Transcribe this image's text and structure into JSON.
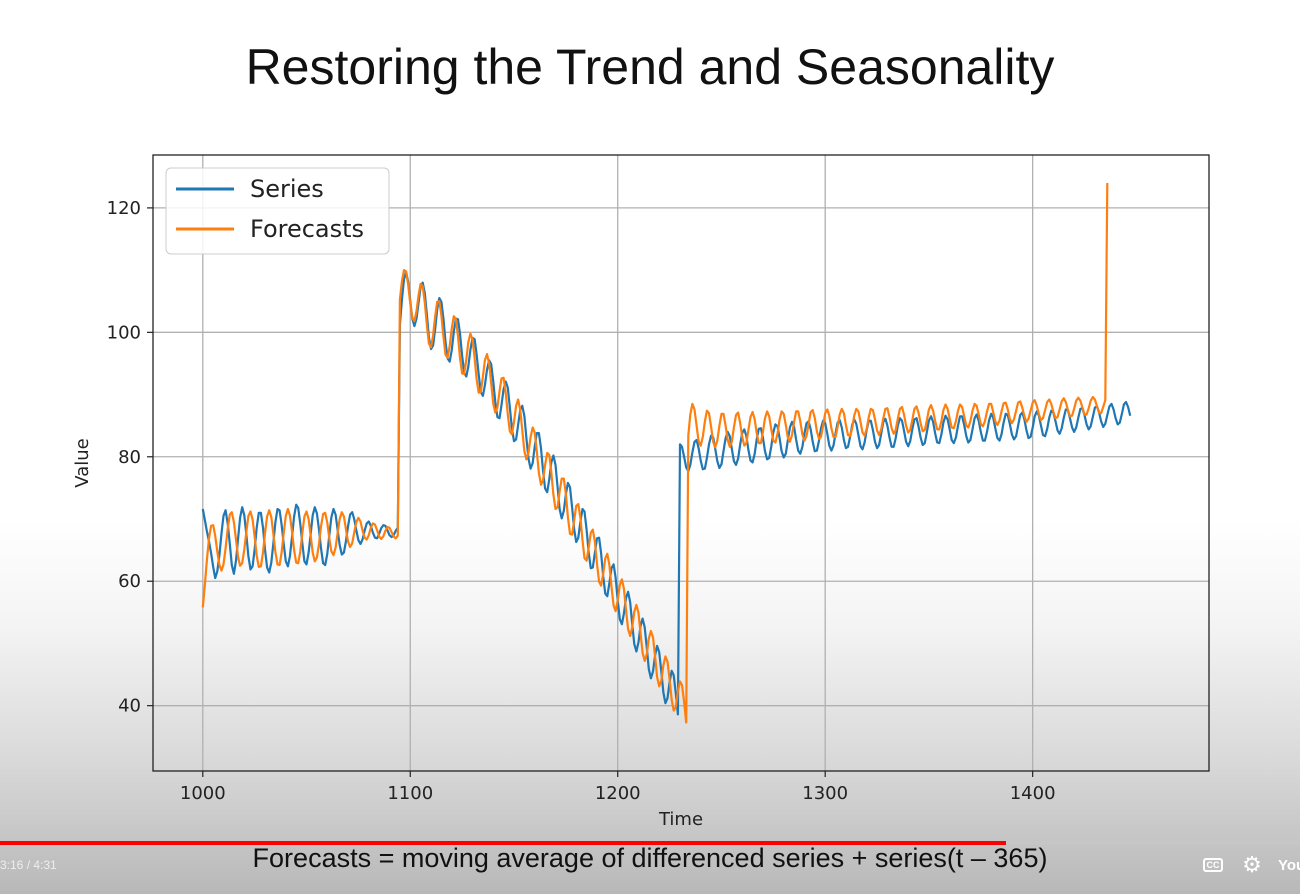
{
  "slide": {
    "title": "Restoring the Trend and Seasonality",
    "caption": "Forecasts = moving average of differenced series + series(t – 365)"
  },
  "player": {
    "timecode": "3:16 / 4:31",
    "progress_fraction": 0.774,
    "cc_label": "CC",
    "settings_icon": "gear-icon",
    "logo_text": "YouTube"
  },
  "chart_data": {
    "type": "line",
    "title": "",
    "xlabel": "Time",
    "ylabel": "Value",
    "xlim": [
      976,
      1485
    ],
    "ylim": [
      29.5,
      128.5
    ],
    "xticks": [
      1000,
      1100,
      1200,
      1300,
      1400
    ],
    "yticks": [
      40,
      60,
      80,
      100,
      120
    ],
    "grid": true,
    "legend": "top-left",
    "series": [
      {
        "name": "Series",
        "color": "#1f77b4",
        "x_start": 1000,
        "x_step": 1,
        "values": [
          71.6,
          69.8,
          68.0,
          66.4,
          64.5,
          62.3,
          60.5,
          61.6,
          64.2,
          67.7,
          70.5,
          71.4,
          69.3,
          66.0,
          62.6,
          61.2,
          63.3,
          66.9,
          70.2,
          71.9,
          70.6,
          67.4,
          64.0,
          61.9,
          62.4,
          65.2,
          68.6,
          71.0,
          71.0,
          68.6,
          65.1,
          62.2,
          61.4,
          63.0,
          66.0,
          69.5,
          71.6,
          71.4,
          69.1,
          66.0,
          63.2,
          62.4,
          64.0,
          67.1,
          70.4,
          72.3,
          71.8,
          69.2,
          66.0,
          63.2,
          62.7,
          64.6,
          67.6,
          70.6,
          71.9,
          70.9,
          68.3,
          65.3,
          62.9,
          62.6,
          64.4,
          67.4,
          70.3,
          71.6,
          70.7,
          68.3,
          65.8,
          64.3,
          64.6,
          66.4,
          68.8,
          70.7,
          71.1,
          70.0,
          68.2,
          66.6,
          66.0,
          66.7,
          68.1,
          69.3,
          69.6,
          68.9,
          67.8,
          67.0,
          66.9,
          67.6,
          68.5,
          69.0,
          68.9,
          68.2,
          67.4,
          67.1,
          67.4,
          68.1,
          68.6,
          101.2,
          105.4,
          108.5,
          109.7,
          108.1,
          105.0,
          102.2,
          101.0,
          102.2,
          104.8,
          107.3,
          108.0,
          106.3,
          102.8,
          99.2,
          97.3,
          97.9,
          100.6,
          103.7,
          105.5,
          104.9,
          102.1,
          98.5,
          95.8,
          95.3,
          97.2,
          100.1,
          102.2,
          102.1,
          99.8,
          96.3,
          93.5,
          92.9,
          94.5,
          97.2,
          99.1,
          98.9,
          96.5,
          93.2,
          90.4,
          89.8,
          91.5,
          94.0,
          95.5,
          94.9,
          92.2,
          88.8,
          86.4,
          86.2,
          88.3,
          90.9,
          92.1,
          91.1,
          88.0,
          84.6,
          82.5,
          82.8,
          85.1,
          87.5,
          88.2,
          86.5,
          83.0,
          79.7,
          78.1,
          79.0,
          81.6,
          83.8,
          83.8,
          81.4,
          77.8,
          74.9,
          74.3,
          76.4,
          79.1,
          80.2,
          78.7,
          75.1,
          71.6,
          70.1,
          71.3,
          74.0,
          75.8,
          75.1,
          71.9,
          68.3,
          66.3,
          67.0,
          69.6,
          71.6,
          71.2,
          68.3,
          64.6,
          62.1,
          62.2,
          64.6,
          66.9,
          67.0,
          64.5,
          60.8,
          58.0,
          57.6,
          59.7,
          62.1,
          62.7,
          60.6,
          57.0,
          53.9,
          53.1,
          54.8,
          57.3,
          58.3,
          56.6,
          53.1,
          49.9,
          48.7,
          50.2,
          52.8,
          54.0,
          52.6,
          49.3,
          45.9,
          44.4,
          45.5,
          48.1,
          49.6,
          48.6,
          45.5,
          42.1,
          40.4,
          41.2,
          43.8,
          45.6,
          44.9,
          42.0,
          38.6,
          82.0,
          81.6,
          80.0,
          78.3,
          77.7,
          78.7,
          80.7,
          82.4,
          82.7,
          81.4,
          79.4,
          78.0,
          78.1,
          79.8,
          82.0,
          83.4,
          83.1,
          81.3,
          79.3,
          78.2,
          78.8,
          80.9,
          83.0,
          84.0,
          83.3,
          81.3,
          79.3,
          78.7,
          79.7,
          81.9,
          83.8,
          84.4,
          83.3,
          81.1,
          79.4,
          79.1,
          80.5,
          82.8,
          84.5,
          84.6,
          83.1,
          80.9,
          79.6,
          79.8,
          81.6,
          83.9,
          85.2,
          84.9,
          83.1,
          80.9,
          79.9,
          80.5,
          82.6,
          84.7,
          85.6,
          84.8,
          82.8,
          81.0,
          80.5,
          81.6,
          83.7,
          85.4,
          85.7,
          84.4,
          82.4,
          80.9,
          81.0,
          82.6,
          84.6,
          85.8,
          85.4,
          83.7,
          81.8,
          81.0,
          81.8,
          83.8,
          85.5,
          85.9,
          84.7,
          82.7,
          81.4,
          81.6,
          83.2,
          85.1,
          86.0,
          85.3,
          83.5,
          81.7,
          81.2,
          82.3,
          84.3,
          85.8,
          85.8,
          84.3,
          82.4,
          81.4,
          81.9,
          83.7,
          85.6,
          86.1,
          85.0,
          83.1,
          81.6,
          81.6,
          83.0,
          85.0,
          86.2,
          85.8,
          84.2,
          82.4,
          81.7,
          82.5,
          84.4,
          86.0,
          86.2,
          84.9,
          83.1,
          81.9,
          82.2,
          83.9,
          85.8,
          86.5,
          85.6,
          83.8,
          82.3,
          82.2,
          83.6,
          85.5,
          86.6,
          86.0,
          84.4,
          82.7,
          82.2,
          83.1,
          85.0,
          86.5,
          86.5,
          85.1,
          83.3,
          82.3,
          82.7,
          84.4,
          86.2,
          86.8,
          85.8,
          84.0,
          82.6,
          82.6,
          84.0,
          85.9,
          86.9,
          86.3,
          84.6,
          83.0,
          82.6,
          83.6,
          85.5,
          86.9,
          86.7,
          85.3,
          83.6,
          82.8,
          83.3,
          85.0,
          86.7,
          87.1,
          86.0,
          84.3,
          83.0,
          83.2,
          84.7,
          86.5,
          87.3,
          86.6,
          85.0,
          83.5,
          83.3,
          84.5,
          86.3,
          87.4,
          87.1,
          85.7,
          84.2,
          83.7,
          84.6,
          86.3,
          87.6,
          87.5,
          86.2,
          84.7,
          84.0,
          84.7,
          86.3,
          87.7,
          87.8,
          86.7,
          85.2,
          84.4,
          84.9,
          86.4,
          87.9,
          88.1,
          87.2,
          85.7,
          84.8,
          85.3,
          86.7,
          88.1,
          88.5,
          87.6,
          86.2,
          85.2,
          85.5,
          86.9,
          88.4,
          88.8,
          88.0,
          86.6
        ]
      },
      {
        "name": "Forecasts",
        "color": "#ff7f0e",
        "x_start": 1000,
        "x_step": 1,
        "values": [
          55.8,
          59.5,
          63.4,
          66.9,
          68.9,
          69.0,
          67.3,
          64.8,
          62.6,
          61.7,
          62.7,
          65.3,
          68.4,
          70.7,
          71.1,
          69.5,
          66.7,
          63.9,
          62.5,
          62.9,
          65.1,
          68.0,
          70.5,
          71.2,
          69.9,
          67.1,
          64.1,
          62.3,
          62.4,
          64.6,
          67.7,
          70.4,
          71.4,
          70.3,
          67.7,
          64.7,
          62.7,
          62.6,
          64.6,
          67.7,
          70.5,
          71.6,
          70.6,
          68.0,
          65.0,
          63.0,
          62.9,
          64.8,
          67.8,
          70.4,
          71.2,
          70.0,
          67.3,
          64.6,
          63.2,
          63.8,
          66.0,
          68.8,
          70.8,
          71.0,
          69.4,
          66.9,
          64.8,
          64.2,
          65.4,
          67.7,
          70.0,
          71.1,
          70.4,
          68.4,
          66.4,
          65.5,
          66.1,
          67.8,
          69.5,
          70.2,
          69.6,
          68.2,
          67.0,
          66.7,
          67.4,
          68.6,
          69.3,
          69.1,
          68.2,
          67.2,
          66.8,
          67.2,
          68.1,
          68.7,
          68.6,
          67.9,
          67.2,
          66.9,
          67.3,
          105.3,
          108.3,
          110.0,
          109.8,
          107.6,
          104.6,
          102.3,
          101.8,
          103.4,
          106.0,
          107.8,
          107.4,
          104.8,
          101.1,
          98.2,
          97.6,
          99.5,
          102.6,
          104.9,
          105.0,
          102.7,
          99.2,
          96.4,
          95.9,
          97.8,
          100.7,
          102.6,
          102.1,
          99.4,
          95.9,
          93.4,
          93.3,
          95.6,
          98.4,
          99.8,
          98.9,
          95.9,
          92.5,
          90.3,
          90.4,
          92.9,
          95.5,
          96.5,
          95.0,
          91.8,
          88.6,
          87.1,
          87.9,
          90.5,
          92.6,
          92.7,
          90.3,
          86.8,
          84.1,
          83.6,
          85.6,
          88.2,
          89.2,
          87.6,
          84.2,
          80.9,
          79.6,
          80.7,
          83.2,
          84.7,
          83.9,
          80.9,
          77.4,
          75.5,
          76.2,
          78.7,
          80.6,
          80.3,
          77.5,
          73.9,
          71.6,
          71.9,
          74.4,
          76.5,
          76.5,
          74.0,
          70.3,
          67.6,
          67.5,
          69.8,
          72.1,
          72.4,
          70.2,
          66.6,
          63.7,
          63.3,
          65.4,
          67.8,
          68.3,
          66.3,
          62.8,
          59.9,
          59.3,
          61.2,
          63.7,
          64.4,
          62.6,
          59.1,
          56.1,
          55.2,
          56.9,
          59.4,
          60.3,
          58.8,
          55.4,
          52.3,
          51.2,
          52.6,
          55.1,
          56.2,
          54.9,
          51.7,
          48.5,
          47.2,
          48.3,
          50.8,
          52.0,
          51.0,
          47.9,
          44.6,
          43.1,
          44.0,
          46.5,
          47.9,
          47.1,
          44.2,
          40.9,
          39.2,
          39.8,
          42.3,
          43.9,
          43.3,
          40.6,
          37.3,
          83.4,
          86.8,
          88.5,
          87.6,
          85.0,
          82.5,
          81.8,
          83.2,
          85.7,
          87.4,
          87.0,
          84.8,
          82.4,
          81.5,
          82.6,
          85.0,
          86.9,
          86.9,
          85.0,
          82.7,
          81.6,
          82.4,
          84.7,
          86.7,
          87.1,
          85.5,
          83.2,
          81.8,
          82.2,
          84.3,
          86.4,
          87.2,
          86.0,
          83.8,
          82.2,
          82.2,
          84.0,
          86.2,
          87.3,
          86.5,
          84.5,
          82.6,
          82.3,
          83.7,
          85.9,
          87.3,
          86.9,
          85.1,
          83.1,
          82.4,
          83.5,
          85.6,
          87.3,
          87.3,
          85.7,
          83.6,
          82.6,
          83.3,
          85.3,
          87.2,
          87.5,
          86.2,
          84.1,
          82.9,
          83.2,
          85.0,
          87.0,
          87.6,
          86.6,
          84.6,
          83.2,
          83.2,
          84.8,
          86.8,
          87.7,
          87.0,
          85.1,
          83.5,
          83.3,
          84.6,
          86.6,
          87.7,
          87.3,
          85.6,
          83.9,
          83.4,
          84.5,
          86.4,
          87.7,
          87.5,
          86.0,
          84.2,
          83.5,
          84.4,
          86.2,
          87.7,
          87.8,
          86.4,
          84.6,
          83.7,
          84.3,
          86.1,
          87.7,
          88.0,
          86.8,
          85.0,
          83.9,
          84.3,
          85.9,
          87.7,
          88.1,
          87.1,
          85.4,
          84.1,
          84.3,
          85.8,
          87.6,
          88.3,
          87.4,
          85.8,
          84.4,
          84.4,
          85.7,
          87.5,
          88.4,
          87.7,
          86.1,
          84.7,
          84.6,
          85.7,
          87.4,
          88.4,
          88.0,
          86.5,
          85.0,
          84.7,
          85.7,
          87.4,
          88.5,
          88.2,
          86.8,
          85.3,
          84.9,
          85.7,
          87.3,
          88.5,
          88.5,
          87.2,
          85.7,
          85.1,
          85.8,
          87.3,
          88.6,
          88.7,
          87.6,
          86.1,
          85.4,
          86.0,
          87.4,
          88.7,
          88.9,
          87.9,
          86.5,
          85.6,
          86.1,
          87.4,
          88.7,
          89.1,
          88.2,
          86.8,
          85.9,
          86.2,
          87.5,
          88.8,
          89.2,
          88.5,
          87.2,
          86.2,
          86.4,
          87.6,
          88.9,
          89.4,
          88.8,
          87.5,
          86.5,
          86.6,
          87.7,
          89.0,
          89.5,
          89.0,
          87.9,
          86.8,
          86.8,
          87.8,
          89.0,
          89.6,
          89.2,
          88.1,
          87.1,
          87.0,
          88.0,
          89.1,
          124.0
        ]
      }
    ]
  }
}
